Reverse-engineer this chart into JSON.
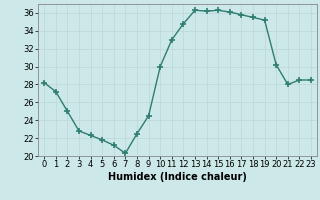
{
  "x": [
    0,
    1,
    2,
    3,
    4,
    5,
    6,
    7,
    8,
    9,
    10,
    11,
    12,
    13,
    14,
    15,
    16,
    17,
    18,
    19,
    20,
    21,
    22,
    23
  ],
  "y": [
    28.2,
    27.2,
    25.0,
    22.8,
    22.3,
    21.8,
    21.2,
    20.3,
    22.5,
    24.5,
    30.0,
    33.0,
    34.8,
    36.3,
    36.2,
    36.3,
    36.1,
    35.8,
    35.5,
    35.2,
    30.2,
    28.0,
    28.5,
    28.5
  ],
  "xlabel": "Humidex (Indice chaleur)",
  "ylim": [
    20,
    37
  ],
  "xlim": [
    -0.5,
    23.5
  ],
  "yticks": [
    20,
    22,
    24,
    26,
    28,
    30,
    32,
    34,
    36
  ],
  "xticks": [
    0,
    1,
    2,
    3,
    4,
    5,
    6,
    7,
    8,
    9,
    10,
    11,
    12,
    13,
    14,
    15,
    16,
    17,
    18,
    19,
    20,
    21,
    22,
    23
  ],
  "xtick_labels": [
    "0",
    "1",
    "2",
    "3",
    "4",
    "5",
    "6",
    "7",
    "8",
    "9",
    "10",
    "11",
    "12",
    "13",
    "14",
    "15",
    "16",
    "17",
    "18",
    "19",
    "20",
    "21",
    "22",
    "23"
  ],
  "line_color": "#2e7d6e",
  "marker": "+",
  "marker_size": 4,
  "bg_color": "#cce8e8",
  "grid_color": "#c0d8d8",
  "line_width": 1.0,
  "tick_fontsize": 6,
  "xlabel_fontsize": 7
}
